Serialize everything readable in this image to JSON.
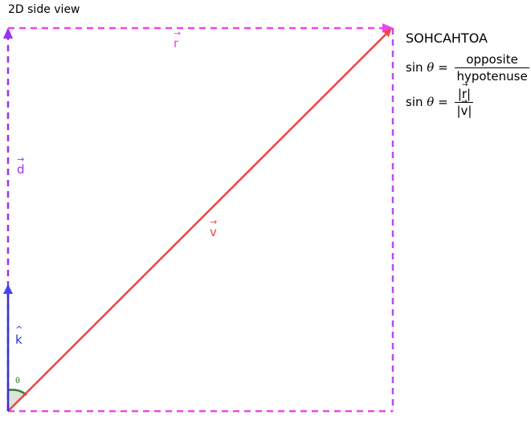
{
  "title": "2D side view",
  "labels": {
    "r": "r",
    "d": "d",
    "v": "v",
    "k": "k",
    "theta": "θ"
  },
  "arrow_glyphs": {
    "vector": "→",
    "hat": "^"
  },
  "formulas": {
    "heading": "SOHCAHTOA",
    "line1_lhs_fn": "sin",
    "line1_lhs_var": "θ",
    "line1_eq": "=",
    "line1_num": "opposite",
    "line1_den": "hypotenuse",
    "line2_lhs_fn": "sin",
    "line2_lhs_var": "θ",
    "line2_eq": "=",
    "line2_num_bar_l": "|",
    "line2_num_sym": "r",
    "line2_num_bar_r": "|",
    "line2_den_bar_l": "|",
    "line2_den_sym": "v",
    "line2_den_bar_r": "|"
  },
  "colors": {
    "dashed_box": "#ee44ee",
    "vector_v": "#ee4444",
    "vector_r": "#ee44ee",
    "vector_d": "#9933ee",
    "vector_k": "#3333cc",
    "angle_fill": "#dde3d6",
    "angle_stroke": "#2e7d32",
    "text": "#000000"
  }
}
